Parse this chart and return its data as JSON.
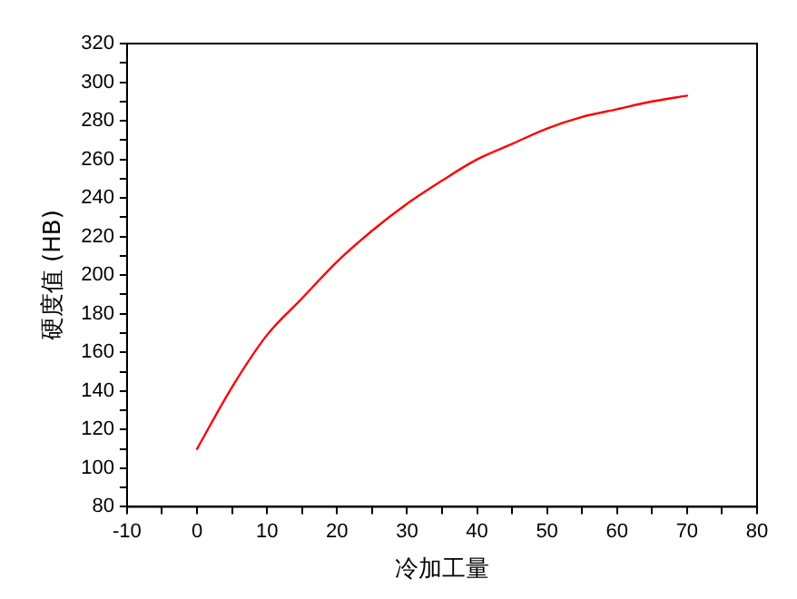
{
  "chart_data": {
    "type": "line",
    "xlabel": "冷加工量",
    "ylabel": "硬度值 (HB)",
    "xlim": [
      -10,
      80
    ],
    "xticks": [
      -10,
      {
        "value": -5,
        "label": null
      },
      0,
      {
        "value": 5,
        "label": null
      },
      10,
      {
        "value": 15,
        "label": null
      },
      20,
      {
        "value": 25,
        "label": null
      },
      30,
      {
        "value": 35,
        "label": null
      },
      40,
      {
        "value": 45,
        "label": null
      },
      50,
      {
        "value": 55,
        "label": null
      },
      60,
      {
        "value": 65,
        "label": null
      },
      70,
      {
        "value": 75,
        "label": null
      },
      80
    ],
    "ylim": [
      80,
      320
    ],
    "yticks": [
      80,
      {
        "value": 90,
        "label": null
      },
      100,
      {
        "value": 110,
        "label": null
      },
      120,
      {
        "value": 130,
        "label": null
      },
      140,
      {
        "value": 150,
        "label": null
      },
      160,
      {
        "value": 170,
        "label": null
      },
      180,
      {
        "value": 190,
        "label": null
      },
      200,
      {
        "value": 210,
        "label": null
      },
      220,
      {
        "value": 230,
        "label": null
      },
      240,
      {
        "value": 250,
        "label": null
      },
      260,
      {
        "value": 270,
        "label": null
      },
      280,
      {
        "value": 290,
        "label": null
      },
      300,
      {
        "value": 310,
        "label": null
      },
      320
    ],
    "x": [
      0,
      5,
      10,
      15,
      20,
      25,
      30,
      35,
      40,
      45,
      50,
      55,
      60,
      65,
      70
    ],
    "series": [
      {
        "color": "#ff0000",
        "values": [
          110,
          142,
          169,
          188,
          207,
          223,
          237,
          249,
          260,
          268,
          276,
          282,
          286,
          290,
          293
        ]
      }
    ],
    "grid": false,
    "legend": false,
    "marker": "none",
    "line_style": "solid"
  }
}
